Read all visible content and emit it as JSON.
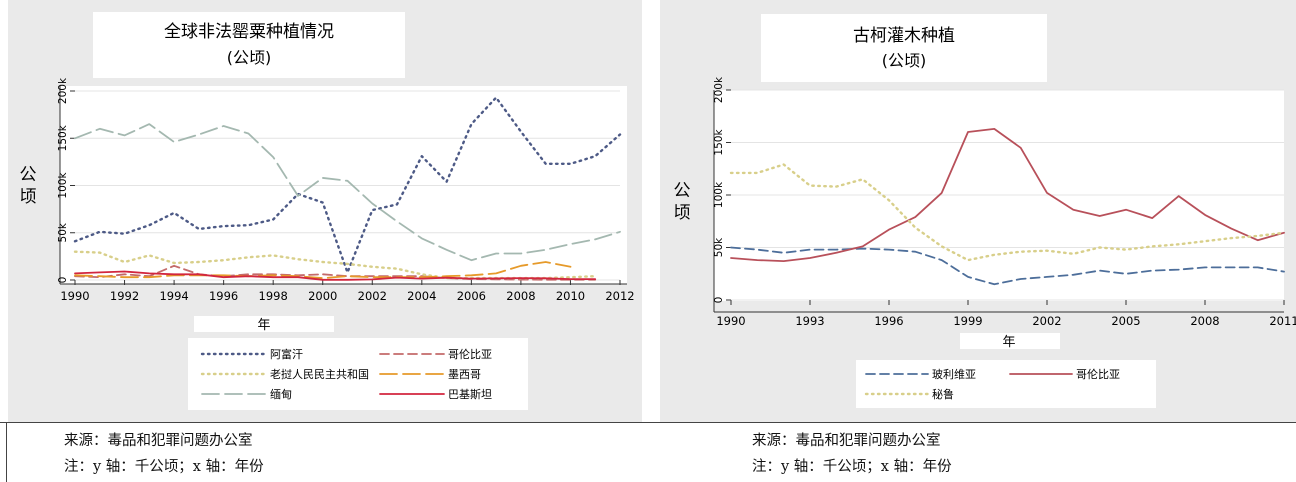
{
  "charts": {
    "left": {
      "title": "全球非法罂粟种植情况",
      "subtitle": "(公顷)",
      "xlabel": "年",
      "ylabel": "公顷",
      "y_ticks": [
        "0",
        "50k",
        "100k",
        "150k",
        "200k"
      ],
      "x_ticks": [
        "1990",
        "1992",
        "1994",
        "1996",
        "1998",
        "2000",
        "2002",
        "2004",
        "2006",
        "2008",
        "2010",
        "2012"
      ]
    },
    "right": {
      "title": "古柯灌木种植",
      "subtitle": "(公顷)",
      "xlabel": "年",
      "ylabel": "公顷",
      "y_ticks": [
        "0",
        "50k",
        "100k",
        "150k",
        "200k"
      ],
      "x_ticks": [
        "1990",
        "1993",
        "1996",
        "1999",
        "2002",
        "2005",
        "2008",
        "2011"
      ]
    }
  },
  "notes": {
    "left": {
      "source": "来源：毒品和犯罪问题办公室",
      "note": "注：y 轴：千公顷；x 轴：年份"
    },
    "right": {
      "source": "来源：毒品和犯罪问题办公室",
      "note": "注：y 轴：千公顷；x 轴：年份"
    }
  },
  "chart_data": [
    {
      "type": "line",
      "title": "全球非法罂粟种植情况",
      "subtitle": "(公顷)",
      "xlabel": "年",
      "ylabel": "公顷",
      "xlim": [
        1990,
        2012
      ],
      "ylim": [
        0,
        200000
      ],
      "grid": true,
      "legend": "bottom",
      "series": [
        {
          "name": "阿富汗",
          "color": "#4d5a86",
          "dash": "dot",
          "x": [
            1990,
            1991,
            1992,
            1993,
            1994,
            1995,
            1996,
            1997,
            1998,
            1999,
            2000,
            2001,
            2002,
            2003,
            2004,
            2005,
            2006,
            2007,
            2008,
            2009,
            2010,
            2011,
            2012
          ],
          "y": [
            41000,
            51000,
            49000,
            58000,
            71000,
            54000,
            57000,
            58000,
            64000,
            91000,
            82000,
            8000,
            74000,
            80000,
            131000,
            104000,
            165000,
            193000,
            157000,
            123000,
            123000,
            131000,
            154000
          ]
        },
        {
          "name": "哥伦比亚",
          "color": "#c46a6a",
          "dash": "dash",
          "x": [
            1990,
            1991,
            1992,
            1993,
            1994,
            1995,
            1996,
            1997,
            1998,
            1999,
            2000,
            2001,
            2002,
            2003,
            2004,
            2005,
            2006,
            2007,
            2008,
            2009,
            2010,
            2011
          ],
          "y": [
            4000,
            3000,
            6000,
            4000,
            15000,
            6000,
            4000,
            6000,
            6000,
            5000,
            6000,
            4000,
            4000,
            4000,
            4000,
            2000,
            1000,
            700,
            400,
            300,
            300,
            300
          ]
        },
        {
          "name": "老挝人民民主共和国",
          "color": "#d8cf8a",
          "dash": "dot",
          "x": [
            1990,
            1991,
            1992,
            1993,
            1994,
            1995,
            1996,
            1997,
            1998,
            1999,
            2000,
            2001,
            2002,
            2003,
            2004,
            2005,
            2006,
            2007,
            2008,
            2009,
            2010,
            2011
          ],
          "y": [
            30000,
            29000,
            19000,
            26000,
            18000,
            19000,
            21000,
            24000,
            26000,
            22000,
            19000,
            17000,
            14000,
            12000,
            6000,
            2000,
            2000,
            2000,
            2000,
            2000,
            3000,
            4000
          ]
        },
        {
          "name": "墨西哥",
          "color": "#e69a2a",
          "dash": "longdash",
          "x": [
            1990,
            1991,
            1992,
            1993,
            1994,
            1995,
            1996,
            1997,
            1998,
            1999,
            2000,
            2001,
            2002,
            2003,
            2004,
            2005,
            2006,
            2007,
            2008,
            2009,
            2010
          ],
          "y": [
            5000,
            4000,
            3000,
            3000,
            5000,
            5000,
            5000,
            4000,
            5000,
            4000,
            2000,
            4000,
            3000,
            3000,
            3000,
            4000,
            5000,
            7000,
            15000,
            19000,
            14000
          ]
        },
        {
          "name": "缅甸",
          "color": "#a4b8b0",
          "dash": "longdash",
          "x": [
            1990,
            1991,
            1992,
            1993,
            1994,
            1995,
            1996,
            1997,
            1998,
            1999,
            2000,
            2001,
            2002,
            2003,
            2004,
            2005,
            2006,
            2007,
            2008,
            2009,
            2010,
            2011,
            2012
          ],
          "y": [
            150000,
            160000,
            153000,
            165000,
            146000,
            154000,
            163000,
            155000,
            130000,
            89000,
            108000,
            105000,
            81000,
            62000,
            44000,
            32000,
            21000,
            28000,
            28000,
            32000,
            38000,
            43000,
            51000
          ]
        },
        {
          "name": "巴基斯坦",
          "color": "#d2263e",
          "dash": "solid",
          "x": [
            1990,
            1991,
            1992,
            1993,
            1994,
            1995,
            1996,
            1997,
            1998,
            1999,
            2000,
            2001,
            2002,
            2003,
            2004,
            2005,
            2006,
            2007,
            2008,
            2009,
            2010,
            2011
          ],
          "y": [
            7000,
            8000,
            9000,
            7000,
            6000,
            6000,
            3000,
            4000,
            3000,
            3000,
            200,
            200,
            600,
            2500,
            1500,
            2400,
            1500,
            1700,
            2000,
            1800,
            1000,
            1000
          ]
        }
      ]
    },
    {
      "type": "line",
      "title": "古柯灌木种植",
      "subtitle": "(公顷)",
      "xlabel": "年",
      "ylabel": "公顷",
      "xlim": [
        1990,
        2011
      ],
      "ylim": [
        0,
        200000
      ],
      "grid": true,
      "legend": "bottom",
      "series": [
        {
          "name": "玻利维亚",
          "color": "#4d6e9a",
          "dash": "dash",
          "x": [
            1990,
            1991,
            1992,
            1993,
            1994,
            1995,
            1996,
            1997,
            1998,
            1999,
            2000,
            2001,
            2002,
            2003,
            2004,
            2005,
            2006,
            2007,
            2008,
            2009,
            2010,
            2011
          ],
          "y": [
            50000,
            48000,
            45000,
            48000,
            48000,
            49000,
            48000,
            46000,
            38000,
            22000,
            15000,
            20000,
            22000,
            24000,
            28000,
            25000,
            28000,
            29000,
            31000,
            31000,
            31000,
            27000
          ]
        },
        {
          "name": "哥伦比亚",
          "color": "#b8505a",
          "dash": "solid",
          "x": [
            1990,
            1991,
            1992,
            1993,
            1994,
            1995,
            1996,
            1997,
            1998,
            1999,
            2000,
            2001,
            2002,
            2003,
            2004,
            2005,
            2006,
            2007,
            2008,
            2009,
            2010,
            2011
          ],
          "y": [
            40000,
            38000,
            37000,
            40000,
            45000,
            51000,
            67000,
            79000,
            102000,
            160000,
            163000,
            145000,
            102000,
            86000,
            80000,
            86000,
            78000,
            99000,
            81000,
            68000,
            57000,
            64000
          ]
        },
        {
          "name": "秘鲁",
          "color": "#d8cf8a",
          "dash": "dot",
          "x": [
            1990,
            1991,
            1992,
            1993,
            1994,
            1995,
            1996,
            1997,
            1998,
            1999,
            2000,
            2001,
            2002,
            2003,
            2004,
            2005,
            2006,
            2007,
            2008,
            2009,
            2010,
            2011
          ],
          "y": [
            121000,
            121000,
            129000,
            109000,
            108000,
            115000,
            95000,
            69000,
            51000,
            38000,
            43000,
            46000,
            47000,
            44000,
            50000,
            48000,
            51000,
            53000,
            56000,
            59000,
            61000,
            64000
          ]
        }
      ]
    }
  ]
}
